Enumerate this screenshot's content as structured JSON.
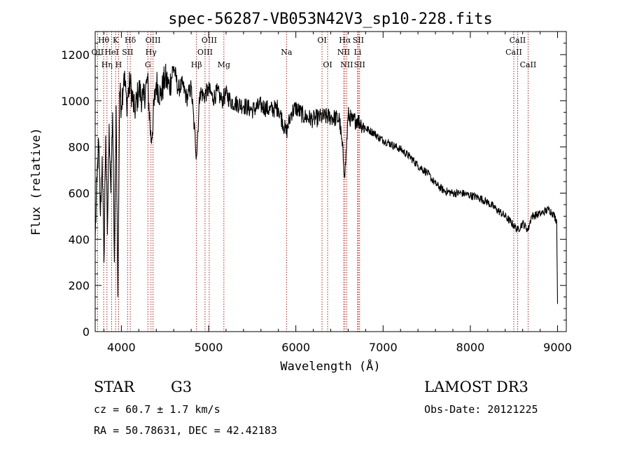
{
  "chart_data": {
    "type": "line",
    "title": "spec-56287-VB053N42V3_sp10-228.fits",
    "xlabel": "Wavelength (Å)",
    "ylabel": "Flux (relative)",
    "xlim": [
      3700,
      9100
    ],
    "ylim": [
      0,
      1300
    ],
    "xticks": [
      4000,
      5000,
      6000,
      7000,
      8000,
      9000
    ],
    "yticks": [
      0,
      200,
      400,
      600,
      800,
      1000,
      1200
    ],
    "grid": false,
    "series": [
      {
        "name": "flux",
        "x": [
          3700,
          3720,
          3740,
          3760,
          3780,
          3800,
          3820,
          3840,
          3860,
          3880,
          3900,
          3920,
          3940,
          3960,
          3980,
          4000,
          4030,
          4060,
          4100,
          4150,
          4200,
          4250,
          4300,
          4340,
          4400,
          4450,
          4500,
          4550,
          4600,
          4650,
          4700,
          4750,
          4800,
          4861,
          4900,
          4950,
          5000,
          5050,
          5100,
          5150,
          5200,
          5250,
          5300,
          5400,
          5500,
          5600,
          5700,
          5800,
          5890,
          5950,
          6000,
          6100,
          6200,
          6300,
          6400,
          6500,
          6563,
          6600,
          6650,
          6700,
          6750,
          6800,
          6850,
          6900,
          6950,
          7000,
          7100,
          7200,
          7300,
          7400,
          7500,
          7600,
          7700,
          7800,
          7900,
          8000,
          8100,
          8200,
          8300,
          8400,
          8498,
          8542,
          8600,
          8662,
          8700,
          8800,
          8900,
          8950,
          8990,
          9000
        ],
        "y": [
          400,
          650,
          820,
          500,
          760,
          300,
          850,
          420,
          900,
          600,
          950,
          300,
          980,
          150,
          1040,
          980,
          1120,
          990,
          1080,
          950,
          1050,
          1000,
          1090,
          820,
          1080,
          1020,
          1100,
          1060,
          1150,
          1050,
          1070,
          1010,
          1060,
          760,
          1040,
          1020,
          1050,
          1010,
          1040,
          1000,
          1030,
          1000,
          990,
          980,
          960,
          980,
          960,
          970,
          860,
          950,
          970,
          930,
          920,
          930,
          930,
          920,
          680,
          940,
          910,
          920,
          900,
          880,
          870,
          860,
          840,
          830,
          810,
          790,
          760,
          720,
          690,
          640,
          610,
          600,
          600,
          590,
          580,
          560,
          530,
          500,
          460,
          440,
          470,
          440,
          500,
          510,
          530,
          510,
          480,
          120
        ]
      }
    ],
    "spectral_lines": [
      {
        "label": "Hθ",
        "wl": 3797,
        "row": 1
      },
      {
        "label": "OII",
        "wl": 3727,
        "row": 2
      },
      {
        "label": "Hη",
        "wl": 3835,
        "row": 3
      },
      {
        "label": "K",
        "wl": 3934,
        "row": 1
      },
      {
        "label": "HeI",
        "wl": 3889,
        "row": 2
      },
      {
        "label": "H",
        "wl": 3968,
        "row": 3
      },
      {
        "label": "Hδ",
        "wl": 4102,
        "row": 1
      },
      {
        "label": "SII",
        "wl": 4072,
        "row": 2
      },
      {
        "label": "OIII",
        "wl": 4363,
        "row": 1
      },
      {
        "label": "Hγ",
        "wl": 4340,
        "row": 2
      },
      {
        "label": "G",
        "wl": 4304,
        "row": 3
      },
      {
        "label": "Hβ",
        "wl": 4861,
        "row": 3
      },
      {
        "label": "OIII",
        "wl": 5007,
        "row": 1
      },
      {
        "label": "OIII",
        "wl": 4959,
        "row": 2
      },
      {
        "label": "Mg",
        "wl": 5175,
        "row": 3
      },
      {
        "label": "Na",
        "wl": 5893,
        "row": 2
      },
      {
        "label": "OI",
        "wl": 6300,
        "row": 1
      },
      {
        "label": "OI",
        "wl": 6364,
        "row": 3
      },
      {
        "label": "Hα",
        "wl": 6563,
        "row": 1
      },
      {
        "label": "NII",
        "wl": 6548,
        "row": 2
      },
      {
        "label": "NII",
        "wl": 6583,
        "row": 3
      },
      {
        "label": "SII",
        "wl": 6716,
        "row": 1
      },
      {
        "label": "Li",
        "wl": 6708,
        "row": 2
      },
      {
        "label": "SII",
        "wl": 6731,
        "row": 3
      },
      {
        "label": "CaII",
        "wl": 8542,
        "row": 1
      },
      {
        "label": "CaII",
        "wl": 8498,
        "row": 2
      },
      {
        "label": "CaII",
        "wl": 8662,
        "row": 3
      }
    ],
    "line_color": "#000000",
    "marker_color": "#b40000"
  },
  "info": {
    "object_class": "STAR",
    "subclass": "G3",
    "survey": "LAMOST DR3",
    "cz": "cz = 60.7 ± 1.7 km/s",
    "obs_date": "Obs-Date: 20121225",
    "coords": "RA =  50.78631, DEC =  42.42183"
  }
}
